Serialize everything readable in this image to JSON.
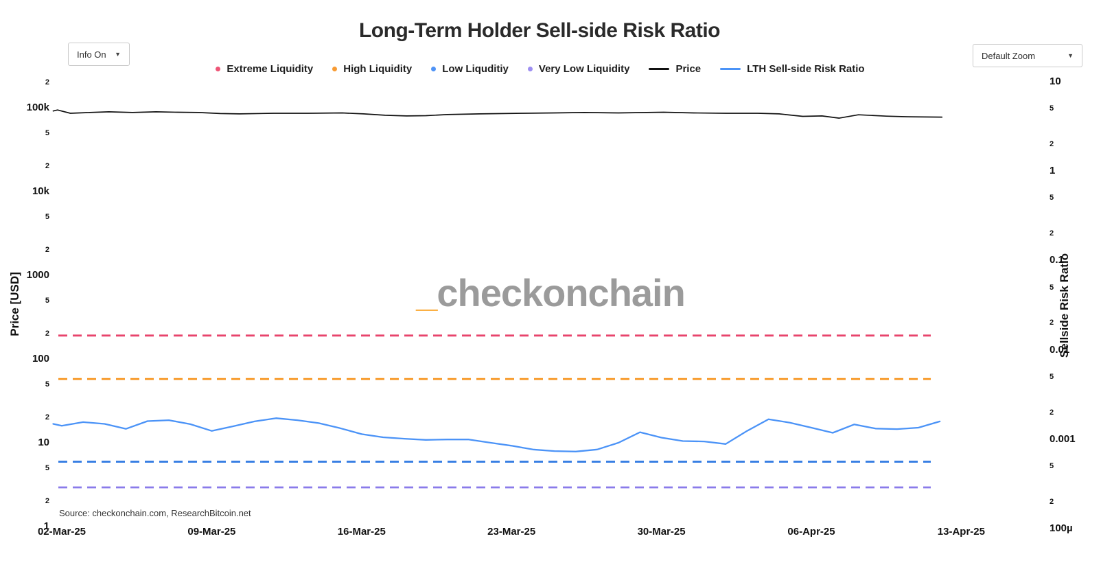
{
  "title": "Long-Term Holder Sell-side Risk Ratio",
  "controls": {
    "info_label": "Info On",
    "zoom_label": "Default Zoom",
    "caret": "▼"
  },
  "legend": {
    "items": [
      {
        "label": "Extreme Liquidity",
        "marker": "dot",
        "color": "#ee5576"
      },
      {
        "label": "High Liquidity",
        "marker": "dot",
        "color": "#f89b33"
      },
      {
        "label": "Low Liquditiy",
        "marker": "dot",
        "color": "#4f93f6"
      },
      {
        "label": "Very Low Liquidity",
        "marker": "dot",
        "color": "#9d8ef2"
      },
      {
        "label": "Price",
        "marker": "line",
        "color": "#111111"
      },
      {
        "label": "LTH Sell-side Risk Ratio",
        "marker": "line",
        "color": "#4b93f7"
      }
    ]
  },
  "watermark": {
    "prefix": "_",
    "text": "checkonchain"
  },
  "source_note": "Source: checkonchain.com, ResearchBitcoin.net",
  "axes": {
    "left_title": "Price [USD]",
    "right_title": "Sellside Risk Ratio",
    "x_tick_labels": [
      {
        "label": "02-Mar-25",
        "t": 0
      },
      {
        "label": "09-Mar-25",
        "t": 7
      },
      {
        "label": "16-Mar-25",
        "t": 14
      },
      {
        "label": "23-Mar-25",
        "t": 21
      },
      {
        "label": "30-Mar-25",
        "t": 28
      },
      {
        "label": "06-Apr-25",
        "t": 35
      },
      {
        "label": "13-Apr-25",
        "t": 42
      }
    ],
    "left_ticks": [
      {
        "label": "2",
        "value": 200000,
        "major": false
      },
      {
        "label": "100k",
        "value": 100000,
        "major": true
      },
      {
        "label": "5",
        "value": 50000,
        "major": false
      },
      {
        "label": "2",
        "value": 20000,
        "major": false
      },
      {
        "label": "10k",
        "value": 10000,
        "major": true
      },
      {
        "label": "5",
        "value": 5000,
        "major": false
      },
      {
        "label": "2",
        "value": 2000,
        "major": false
      },
      {
        "label": "1000",
        "value": 1000,
        "major": true
      },
      {
        "label": "5",
        "value": 500,
        "major": false
      },
      {
        "label": "2",
        "value": 200,
        "major": false
      },
      {
        "label": "100",
        "value": 100,
        "major": true
      },
      {
        "label": "5",
        "value": 50,
        "major": false
      },
      {
        "label": "2",
        "value": 20,
        "major": false
      },
      {
        "label": "10",
        "value": 10,
        "major": true
      },
      {
        "label": "5",
        "value": 5,
        "major": false
      },
      {
        "label": "2",
        "value": 2,
        "major": false
      },
      {
        "label": "1",
        "value": 1,
        "major": true
      }
    ],
    "right_ticks": [
      {
        "label": "10",
        "value": 10,
        "major": true
      },
      {
        "label": "5",
        "value": 5,
        "major": false
      },
      {
        "label": "2",
        "value": 2,
        "major": false
      },
      {
        "label": "1",
        "value": 1,
        "major": true
      },
      {
        "label": "5",
        "value": 0.5,
        "major": false
      },
      {
        "label": "2",
        "value": 0.2,
        "major": false
      },
      {
        "label": "0.1",
        "value": 0.1,
        "major": true
      },
      {
        "label": "5",
        "value": 0.05,
        "major": false
      },
      {
        "label": "2",
        "value": 0.02,
        "major": false
      },
      {
        "label": "0.01",
        "value": 0.01,
        "major": true
      },
      {
        "label": "5",
        "value": 0.005,
        "major": false
      },
      {
        "label": "2",
        "value": 0.002,
        "major": false
      },
      {
        "label": "0.001",
        "value": 0.001,
        "major": true
      },
      {
        "label": "5",
        "value": 0.0005,
        "major": false
      },
      {
        "label": "2",
        "value": 0.0002,
        "major": false
      },
      {
        "label": "100µ",
        "value": 0.0001,
        "major": true
      }
    ]
  },
  "chart_data": {
    "type": "line",
    "title": "Long-Term Holder Sell-side Risk Ratio",
    "x_axis": {
      "unit": "days since 02-Mar-25",
      "range": [
        -0.5,
        42
      ],
      "tick_dates": [
        "02-Mar-25",
        "09-Mar-25",
        "16-Mar-25",
        "23-Mar-25",
        "30-Mar-25",
        "06-Apr-25",
        "13-Apr-25"
      ]
    },
    "y_left_axis": {
      "label": "Price [USD]",
      "scale": "log",
      "range": [
        1,
        200000
      ]
    },
    "y_right_axis": {
      "label": "Sellside Risk Ratio",
      "scale": "log",
      "range": [
        0.0001,
        10
      ]
    },
    "grid": false,
    "legend_position": "top-center",
    "thresholds": [
      {
        "name": "Extreme Liquidity",
        "axis": "right",
        "value": 0.0147,
        "color": "#e8446c",
        "style": "dashed"
      },
      {
        "name": "High Liquidity",
        "axis": "right",
        "value": 0.0048,
        "color": "#f7941e",
        "style": "dashed"
      },
      {
        "name": "Low Liquditiy",
        "axis": "right",
        "value": 0.00057,
        "color": "#2d78e2",
        "style": "dashed"
      },
      {
        "name": "Very Low Liquidity",
        "axis": "right",
        "value": 0.000294,
        "color": "#8a7bea",
        "style": "dashed"
      }
    ],
    "series": [
      {
        "name": "Price",
        "axis": "left",
        "color": "#111111",
        "points": [
          [
            -0.4,
            93300
          ],
          [
            -0.2,
            96000
          ],
          [
            0.4,
            87700
          ],
          [
            1.3,
            89400
          ],
          [
            2.2,
            91100
          ],
          [
            3.3,
            89400
          ],
          [
            4.4,
            91100
          ],
          [
            5.4,
            90200
          ],
          [
            6.4,
            89400
          ],
          [
            7.4,
            86900
          ],
          [
            8.3,
            86100
          ],
          [
            9.9,
            87700
          ],
          [
            11.5,
            87700
          ],
          [
            13.1,
            88500
          ],
          [
            14.1,
            86100
          ],
          [
            15.1,
            82900
          ],
          [
            16.1,
            81400
          ],
          [
            17,
            82100
          ],
          [
            18,
            84500
          ],
          [
            19.5,
            86100
          ],
          [
            21.5,
            87700
          ],
          [
            23,
            88500
          ],
          [
            24.4,
            89400
          ],
          [
            26,
            88500
          ],
          [
            28.1,
            90200
          ],
          [
            29.5,
            88500
          ],
          [
            31,
            87700
          ],
          [
            32.5,
            87700
          ],
          [
            33.5,
            86100
          ],
          [
            34.6,
            80500
          ],
          [
            35.5,
            81400
          ],
          [
            36.3,
            76600
          ],
          [
            37.2,
            84000
          ],
          [
            38.5,
            81000
          ],
          [
            39.5,
            79600
          ],
          [
            41.1,
            78900
          ]
        ]
      },
      {
        "name": "LTH Sell-side Risk Ratio",
        "axis": "right",
        "color": "#4b93f7",
        "points": [
          [
            -0.4,
            0.00151
          ],
          [
            0,
            0.00144
          ],
          [
            1,
            0.00158
          ],
          [
            2,
            0.00151
          ],
          [
            3,
            0.00133
          ],
          [
            4,
            0.00162
          ],
          [
            5,
            0.00166
          ],
          [
            6,
            0.0015
          ],
          [
            7,
            0.00126
          ],
          [
            8,
            0.00142
          ],
          [
            9,
            0.00161
          ],
          [
            10,
            0.00175
          ],
          [
            11,
            0.00166
          ],
          [
            12,
            0.00154
          ],
          [
            13,
            0.00135
          ],
          [
            14,
            0.00116
          ],
          [
            15,
            0.00107
          ],
          [
            16,
            0.00103
          ],
          [
            17,
            0.001
          ],
          [
            18,
            0.00101
          ],
          [
            19,
            0.00101
          ],
          [
            20,
            0.00093
          ],
          [
            21,
            0.00086
          ],
          [
            22,
            0.00078
          ],
          [
            23,
            0.00075
          ],
          [
            24,
            0.00074
          ],
          [
            25,
            0.00078
          ],
          [
            26,
            0.00093
          ],
          [
            27,
            0.00122
          ],
          [
            28,
            0.00106
          ],
          [
            29,
            0.00097
          ],
          [
            30,
            0.00096
          ],
          [
            31,
            0.0009
          ],
          [
            32,
            0.00126
          ],
          [
            33,
            0.0017
          ],
          [
            34,
            0.00156
          ],
          [
            35,
            0.00137
          ],
          [
            36,
            0.0012
          ],
          [
            37,
            0.00149
          ],
          [
            38,
            0.00134
          ],
          [
            39,
            0.00132
          ],
          [
            40,
            0.00137
          ],
          [
            41,
            0.00161
          ]
        ]
      }
    ]
  }
}
